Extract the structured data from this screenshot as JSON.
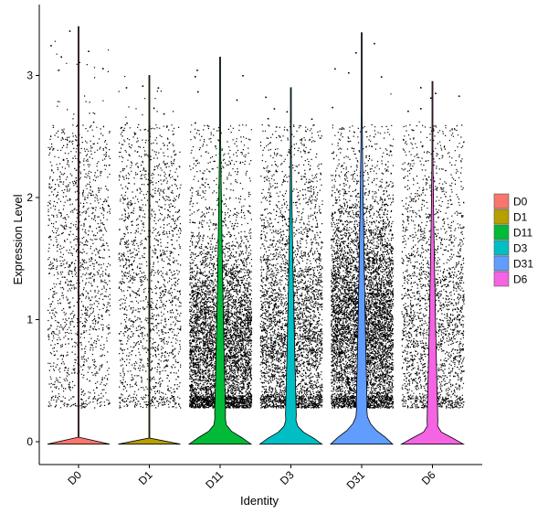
{
  "chart_data": {
    "type": "violin",
    "title": "",
    "xlabel": "Identity",
    "ylabel": "Expression Level",
    "categories": [
      "D0",
      "D1",
      "D11",
      "D3",
      "D31",
      "D6"
    ],
    "ylim": [
      -0.18,
      3.55
    ],
    "yticks": [
      0,
      1,
      2,
      3
    ],
    "grid": false,
    "legend": {
      "position": "right",
      "entries": [
        "D0",
        "D1",
        "D11",
        "D3",
        "D31",
        "D6"
      ]
    },
    "series": [
      {
        "name": "D0",
        "color": "#F8766D",
        "max_value": 3.4,
        "jitter_points_approx": 1500,
        "violin_base_height": 0.015
      },
      {
        "name": "D1",
        "color": "#B79F00",
        "max_value": 3.0,
        "jitter_points_approx": 1700,
        "violin_base_height": 0.015
      },
      {
        "name": "D11",
        "color": "#00BA38",
        "max_value": 3.15,
        "jitter_points_approx": 5500,
        "violin_base_height": 0.2
      },
      {
        "name": "D3",
        "color": "#00BFC4",
        "max_value": 2.9,
        "jitter_points_approx": 3800,
        "violin_base_height": 0.2
      },
      {
        "name": "D31",
        "color": "#619CFF",
        "max_value": 3.35,
        "jitter_points_approx": 6500,
        "violin_base_height": 0.28
      },
      {
        "name": "D6",
        "color": "#F564E3",
        "max_value": 2.95,
        "jitter_points_approx": 2300,
        "violin_base_height": 0.15
      }
    ]
  }
}
